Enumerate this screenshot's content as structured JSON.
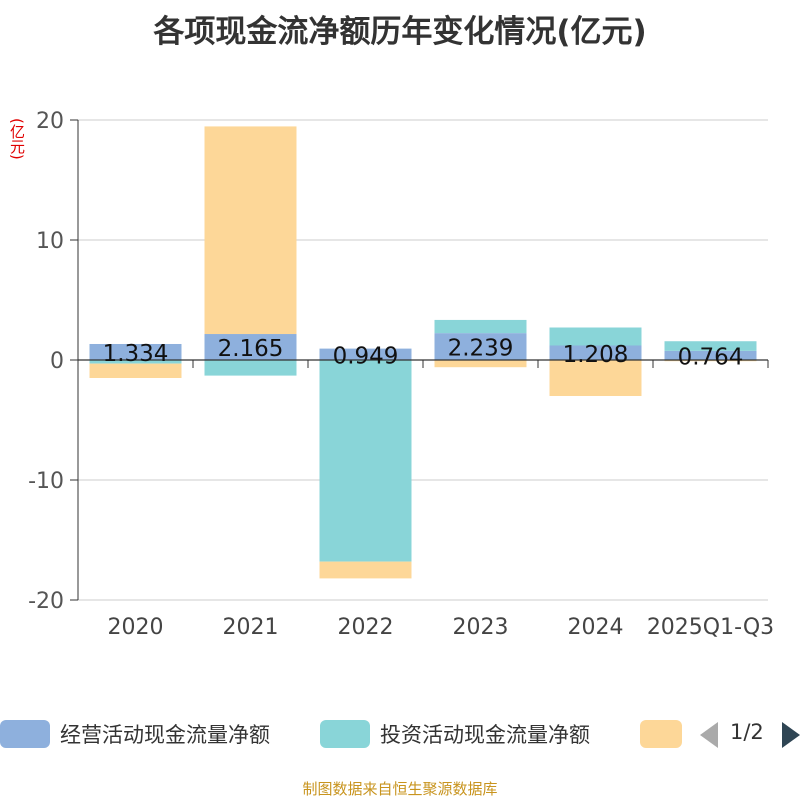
{
  "title": "各项现金流净额历年变化情况(亿元)",
  "unit_label": "(亿元)",
  "source": "制图数据来自恒生聚源数据库",
  "pagination": {
    "label": "1/2"
  },
  "colors": {
    "operating": "#8eb0dd",
    "investing": "#89d5d8",
    "financing": "#fdd798",
    "axis": "#333333",
    "grid": "#cccccc"
  },
  "chart_data": {
    "type": "bar",
    "stacked": true,
    "title": "各项现金流净额历年变化情况(亿元)",
    "ylabel": "(亿元)",
    "categories": [
      "2020",
      "2021",
      "2022",
      "2023",
      "2024",
      "2025Q1-Q3"
    ],
    "ylim": [
      -20,
      20
    ],
    "yticks": [
      20,
      10,
      0,
      -10,
      -20
    ],
    "grid": true,
    "legend_position": "bottom",
    "series": [
      {
        "name": "经营活动现金流量净额",
        "values": [
          1.334,
          2.165,
          0.949,
          2.239,
          1.208,
          0.764
        ],
        "data_labels": [
          "1.334",
          "2.165",
          "0.949",
          "2.239",
          "1.208",
          "0.764"
        ]
      },
      {
        "name": "投资活动现金流量净额",
        "values": [
          -0.3,
          -1.3,
          -16.8,
          1.1,
          1.5,
          0.8
        ]
      },
      {
        "name": "",
        "values": [
          -1.2,
          17.3,
          -1.4,
          -0.6,
          -3.0,
          -0.1
        ]
      }
    ]
  }
}
